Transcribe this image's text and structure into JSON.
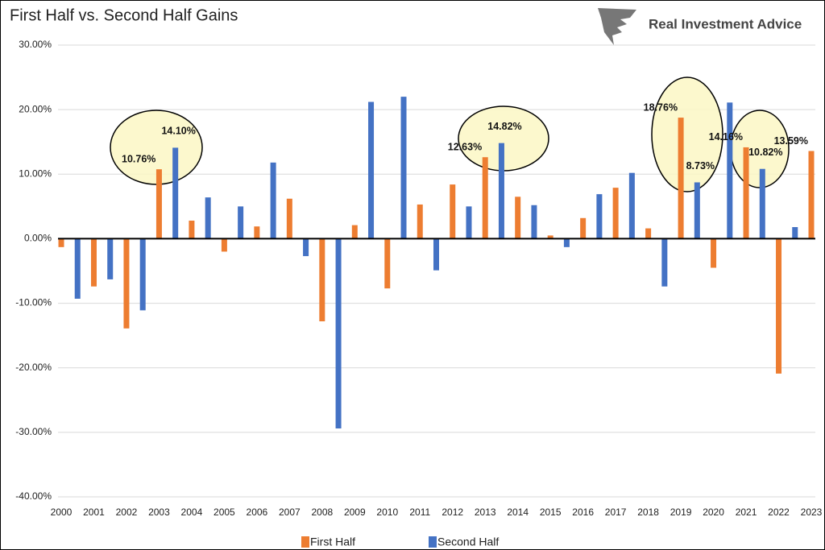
{
  "brand": "Real Investment Advice",
  "chart_data": {
    "type": "bar",
    "title": "First Half vs. Second Half Gains",
    "categories": [
      "2000",
      "2001",
      "2002",
      "2003",
      "2004",
      "2005",
      "2006",
      "2007",
      "2008",
      "2009",
      "2010",
      "2011",
      "2012",
      "2013",
      "2014",
      "2015",
      "2016",
      "2017",
      "2018",
      "2019",
      "2020",
      "2021",
      "2022",
      "2023"
    ],
    "series": [
      {
        "name": "First Half",
        "color": "#ed7d31",
        "values": [
          -1.3,
          -7.4,
          -13.9,
          10.76,
          2.8,
          -2.0,
          1.9,
          6.2,
          -12.8,
          2.1,
          -7.7,
          5.3,
          8.4,
          12.63,
          6.5,
          0.5,
          3.2,
          7.9,
          1.6,
          18.76,
          -4.5,
          14.16,
          -20.9,
          13.59
        ],
        "value_labels": [
          null,
          null,
          null,
          "10.76%",
          null,
          null,
          null,
          null,
          null,
          null,
          null,
          null,
          null,
          "12.63%",
          null,
          null,
          null,
          null,
          null,
          "18.76%",
          null,
          "14.16%",
          null,
          "13.59%"
        ]
      },
      {
        "name": "Second Half",
        "color": "#4472c4",
        "values": [
          -9.3,
          -6.3,
          -11.1,
          14.1,
          6.4,
          5.0,
          11.8,
          -2.7,
          -29.4,
          21.2,
          22.0,
          -4.9,
          5.0,
          14.82,
          5.2,
          -1.3,
          6.9,
          10.2,
          -7.4,
          8.73,
          21.1,
          10.82,
          1.8,
          null
        ],
        "value_labels": [
          null,
          null,
          null,
          "14.10%",
          null,
          null,
          null,
          null,
          null,
          null,
          null,
          null,
          null,
          "14.82%",
          null,
          null,
          null,
          null,
          null,
          "8.73%",
          null,
          "10.82%",
          null,
          null
        ]
      }
    ],
    "ylim": [
      -40,
      30
    ],
    "yticks": [
      {
        "value": -40,
        "label": "-40.00%"
      },
      {
        "value": -30,
        "label": "-30.00%"
      },
      {
        "value": -20,
        "label": "-20.00%"
      },
      {
        "value": -10,
        "label": "-10.00%"
      },
      {
        "value": 0,
        "label": "0.00%"
      },
      {
        "value": 10,
        "label": "10.00%"
      },
      {
        "value": 20,
        "label": "20.00%"
      },
      {
        "value": 30,
        "label": "30.00%"
      }
    ],
    "grid": true,
    "legend": "bottom"
  }
}
